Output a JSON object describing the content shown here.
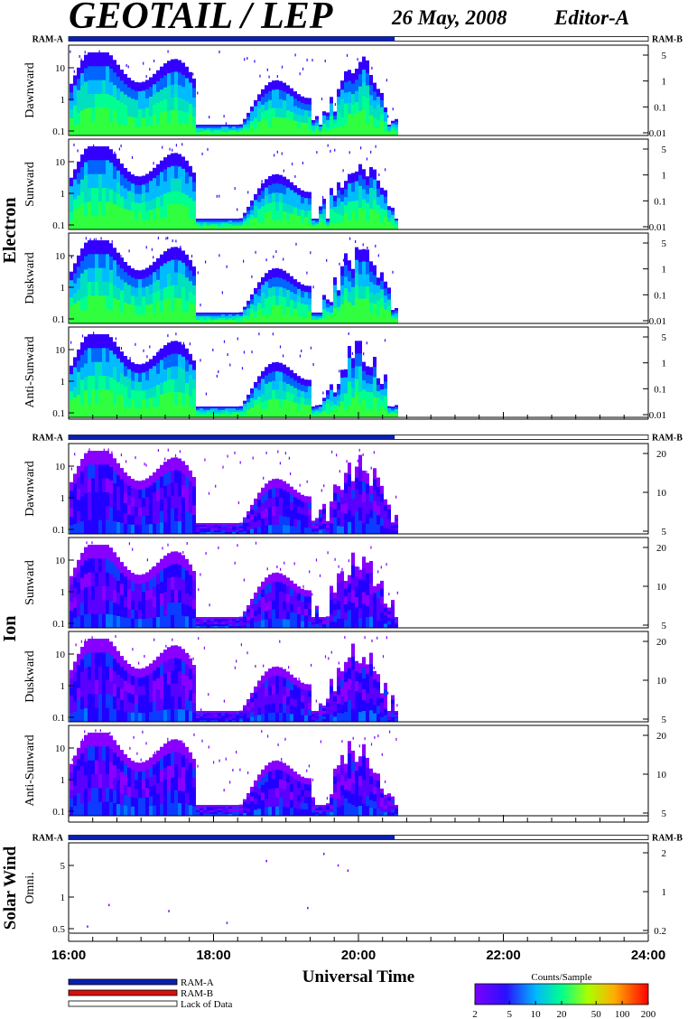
{
  "header": {
    "title": "GEOTAIL / LEP",
    "date": "26 May, 2008",
    "editor": "Editor-A"
  },
  "chart_data": {
    "type": "heatmap",
    "xlabel": "Universal Time",
    "xlim": [
      "16:00",
      "24:00"
    ],
    "x_ticks": [
      "16:00",
      "18:00",
      "20:00",
      "22:00",
      "24:00"
    ],
    "data_coverage_end": "20:30",
    "groups": [
      {
        "name": "Electron",
        "left_axis_label": "RAM-A",
        "right_axis_label": "RAM-B",
        "left_ticks": [
          "10",
          "1",
          "0.1"
        ],
        "right_ticks": [
          "5",
          "1",
          "0.1",
          "0.01"
        ],
        "panels": [
          "Dawnward",
          "Sunward",
          "Duskward",
          "Anti-Sunward"
        ]
      },
      {
        "name": "Ion",
        "left_axis_label": "RAM-A",
        "right_axis_label": "RAM-B",
        "left_ticks": [
          "10",
          "1",
          "0.1"
        ],
        "right_ticks": [
          "20",
          "10",
          "5"
        ],
        "panels": [
          "Dawnward",
          "Sunward",
          "Duskward",
          "Anti-Sunward"
        ]
      },
      {
        "name": "Solar Wind",
        "left_axis_label": "RAM-A",
        "right_axis_label": "RAM-B",
        "left_ticks": [
          "5",
          "1",
          "0.5"
        ],
        "right_ticks": [
          "2",
          "1",
          "0.2"
        ],
        "panels": [
          "Omni."
        ]
      }
    ],
    "colorbar": {
      "label": "Counts/Sample",
      "ticks": [
        "2",
        "5",
        "10",
        "20",
        "50",
        "100",
        "200"
      ],
      "range": [
        2,
        200
      ]
    },
    "status_legend": [
      {
        "label": "RAM-A",
        "color": "#0b1fb0"
      },
      {
        "label": "RAM-B",
        "color": "#d81010"
      },
      {
        "label": "Lack of Data",
        "color": "#ffffff"
      }
    ]
  }
}
